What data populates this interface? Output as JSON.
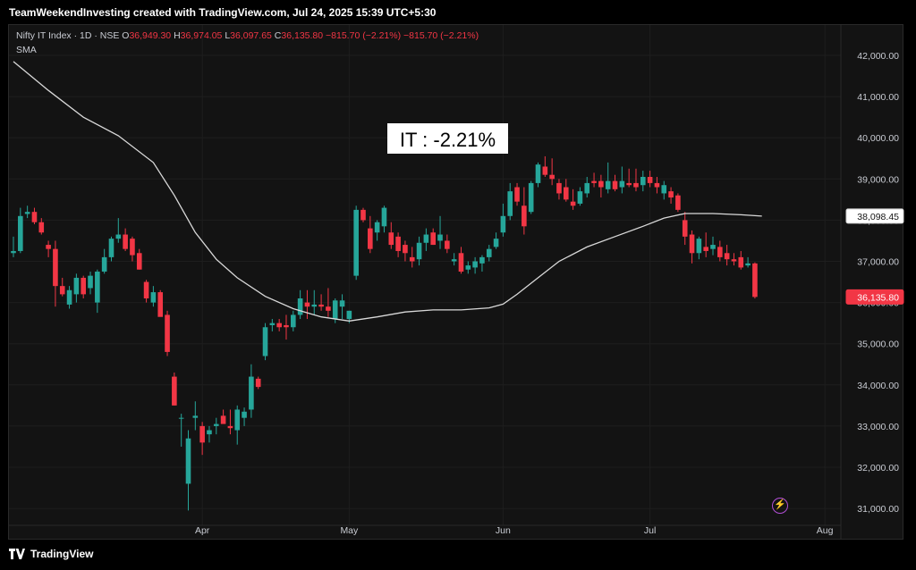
{
  "header": {
    "attribution": "TeamWeekendInvesting created with TradingView.com, Jul 24, 2025 15:39 UTC+5:30"
  },
  "legend": {
    "instrument": "Nifty IT Index · 1D · NSE",
    "o_label": "O",
    "o_value": "36,949.30",
    "h_label": "H",
    "h_value": "36,974.05",
    "l_label": "L",
    "l_value": "36,097.65",
    "c_label": "C",
    "c_value": "36,135.80",
    "change": "−815.70 (−2.21%)",
    "change2": "−815.70 (−2.21%)",
    "sma_label": "SMA"
  },
  "annotation": {
    "text": "IT : -2.21%"
  },
  "footer": {
    "brand": "TradingView"
  },
  "colors": {
    "up": "#26a69a",
    "down": "#f23645",
    "sma": "#d9d9d9",
    "background": "#131313",
    "grid": "#1e1e1e"
  },
  "icons": {
    "footer_logo": "tradingview-logo-icon",
    "alert": "lightning-icon"
  },
  "chart_data": {
    "type": "candlestick",
    "y_axis": {
      "ticks": [
        31000,
        32000,
        33000,
        34000,
        35000,
        36000,
        37000,
        38000,
        39000,
        40000,
        41000,
        42000
      ],
      "tick_labels": [
        "31,000.00",
        "32,000.00",
        "33,000.00",
        "34,000.00",
        "35,000.00",
        "36,000.00",
        "37,000.00",
        "38,000.00",
        "39,000.00",
        "40,000.00",
        "41,000.00",
        "42,000.00"
      ],
      "range": [
        30900,
        42400
      ]
    },
    "x_axis": {
      "labels": [
        "Apr",
        "May",
        "Jun",
        "Jul",
        "Aug"
      ],
      "label_bar_index": [
        27,
        48,
        70,
        91,
        116
      ]
    },
    "price_labels": [
      {
        "text": "38,098.45",
        "value": 38098.45,
        "style": "sma"
      },
      {
        "text": "36,135.80",
        "value": 36135.8,
        "style": "last"
      }
    ],
    "candles": [
      {
        "o": 37200,
        "h": 37600,
        "l": 37100,
        "c": 37250
      },
      {
        "o": 37250,
        "h": 38300,
        "l": 37200,
        "c": 38100
      },
      {
        "o": 38150,
        "h": 38350,
        "l": 38050,
        "c": 38200
      },
      {
        "o": 38200,
        "h": 38300,
        "l": 37900,
        "c": 37950
      },
      {
        "o": 37950,
        "h": 38050,
        "l": 37650,
        "c": 37700
      },
      {
        "o": 37400,
        "h": 37500,
        "l": 37100,
        "c": 37300
      },
      {
        "o": 37300,
        "h": 37500,
        "l": 35900,
        "c": 36400
      },
      {
        "o": 36400,
        "h": 36600,
        "l": 36150,
        "c": 36200
      },
      {
        "o": 35950,
        "h": 36400,
        "l": 35850,
        "c": 36300
      },
      {
        "o": 36200,
        "h": 36700,
        "l": 36000,
        "c": 36600
      },
      {
        "o": 36600,
        "h": 36650,
        "l": 36100,
        "c": 36200
      },
      {
        "o": 36350,
        "h": 36750,
        "l": 36200,
        "c": 36650
      },
      {
        "o": 36000,
        "h": 36800,
        "l": 35750,
        "c": 36750
      },
      {
        "o": 36750,
        "h": 37300,
        "l": 36700,
        "c": 37100
      },
      {
        "o": 37100,
        "h": 37600,
        "l": 37000,
        "c": 37550
      },
      {
        "o": 37550,
        "h": 38050,
        "l": 37450,
        "c": 37650
      },
      {
        "o": 37650,
        "h": 37800,
        "l": 37250,
        "c": 37300
      },
      {
        "o": 37550,
        "h": 37600,
        "l": 37000,
        "c": 37150
      },
      {
        "o": 37200,
        "h": 37300,
        "l": 36800,
        "c": 36800
      },
      {
        "o": 36500,
        "h": 36550,
        "l": 36000,
        "c": 36100
      },
      {
        "o": 36000,
        "h": 36400,
        "l": 35900,
        "c": 36250
      },
      {
        "o": 36250,
        "h": 36300,
        "l": 35700,
        "c": 35650
      },
      {
        "o": 35700,
        "h": 35800,
        "l": 34700,
        "c": 34800
      },
      {
        "o": 34200,
        "h": 34300,
        "l": 33500,
        "c": 33500
      },
      {
        "o": 33200,
        "h": 33300,
        "l": 32500,
        "c": 33200
      },
      {
        "o": 31600,
        "h": 32900,
        "l": 30950,
        "c": 32700
      },
      {
        "o": 33200,
        "h": 33600,
        "l": 32900,
        "c": 33250
      },
      {
        "o": 33000,
        "h": 33100,
        "l": 32300,
        "c": 32600
      },
      {
        "o": 32800,
        "h": 33000,
        "l": 32600,
        "c": 32900
      },
      {
        "o": 33000,
        "h": 33200,
        "l": 32800,
        "c": 33050
      },
      {
        "o": 33250,
        "h": 33400,
        "l": 33100,
        "c": 33050
      },
      {
        "o": 33000,
        "h": 33400,
        "l": 32800,
        "c": 32950
      },
      {
        "o": 32900,
        "h": 33500,
        "l": 32550,
        "c": 33400
      },
      {
        "o": 33200,
        "h": 33450,
        "l": 33000,
        "c": 33350
      },
      {
        "o": 33400,
        "h": 34500,
        "l": 33200,
        "c": 34200
      },
      {
        "o": 34150,
        "h": 34200,
        "l": 33900,
        "c": 33950
      },
      {
        "o": 34700,
        "h": 35500,
        "l": 34600,
        "c": 35400
      },
      {
        "o": 35450,
        "h": 35600,
        "l": 35300,
        "c": 35500
      },
      {
        "o": 35500,
        "h": 35600,
        "l": 35300,
        "c": 35400
      },
      {
        "o": 35450,
        "h": 35700,
        "l": 35100,
        "c": 35400
      },
      {
        "o": 35400,
        "h": 35800,
        "l": 35300,
        "c": 35700
      },
      {
        "o": 35700,
        "h": 36300,
        "l": 35600,
        "c": 36100
      },
      {
        "o": 36000,
        "h": 36300,
        "l": 35600,
        "c": 35900
      },
      {
        "o": 35900,
        "h": 36300,
        "l": 35700,
        "c": 35950
      },
      {
        "o": 35950,
        "h": 36200,
        "l": 35800,
        "c": 35900
      },
      {
        "o": 35900,
        "h": 36350,
        "l": 35650,
        "c": 35800
      },
      {
        "o": 35600,
        "h": 36100,
        "l": 35500,
        "c": 36050
      },
      {
        "o": 35900,
        "h": 36200,
        "l": 35600,
        "c": 36050
      },
      {
        "o": 35600,
        "h": 35800,
        "l": 35500,
        "c": 35800
      },
      {
        "o": 36650,
        "h": 38350,
        "l": 36550,
        "c": 38250
      },
      {
        "o": 38250,
        "h": 38300,
        "l": 37950,
        "c": 38000
      },
      {
        "o": 37800,
        "h": 38100,
        "l": 37200,
        "c": 37300
      },
      {
        "o": 37700,
        "h": 38000,
        "l": 37500,
        "c": 37950
      },
      {
        "o": 37850,
        "h": 38350,
        "l": 37700,
        "c": 38300
      },
      {
        "o": 37700,
        "h": 37950,
        "l": 37300,
        "c": 37400
      },
      {
        "o": 37600,
        "h": 37700,
        "l": 37100,
        "c": 37250
      },
      {
        "o": 37400,
        "h": 37500,
        "l": 37000,
        "c": 37200
      },
      {
        "o": 37100,
        "h": 37350,
        "l": 36850,
        "c": 37000
      },
      {
        "o": 37050,
        "h": 37600,
        "l": 36900,
        "c": 37450
      },
      {
        "o": 37450,
        "h": 37800,
        "l": 37250,
        "c": 37650
      },
      {
        "o": 37700,
        "h": 37800,
        "l": 37400,
        "c": 37400
      },
      {
        "o": 37500,
        "h": 38100,
        "l": 37300,
        "c": 37650
      },
      {
        "o": 37500,
        "h": 37650,
        "l": 37200,
        "c": 37300
      },
      {
        "o": 37000,
        "h": 37200,
        "l": 36900,
        "c": 37050
      },
      {
        "o": 37200,
        "h": 37350,
        "l": 36700,
        "c": 36750
      },
      {
        "o": 36800,
        "h": 37000,
        "l": 36700,
        "c": 36900
      },
      {
        "o": 36850,
        "h": 37100,
        "l": 36700,
        "c": 37000
      },
      {
        "o": 36950,
        "h": 37150,
        "l": 36750,
        "c": 37100
      },
      {
        "o": 37100,
        "h": 37400,
        "l": 37000,
        "c": 37300
      },
      {
        "o": 37350,
        "h": 37700,
        "l": 37300,
        "c": 37550
      },
      {
        "o": 37700,
        "h": 38400,
        "l": 37600,
        "c": 38100
      },
      {
        "o": 38100,
        "h": 38900,
        "l": 38000,
        "c": 38700
      },
      {
        "o": 38800,
        "h": 38900,
        "l": 38350,
        "c": 38450
      },
      {
        "o": 38350,
        "h": 38800,
        "l": 37650,
        "c": 37850
      },
      {
        "o": 38200,
        "h": 38950,
        "l": 38150,
        "c": 38900
      },
      {
        "o": 38900,
        "h": 39400,
        "l": 38800,
        "c": 39350
      },
      {
        "o": 39300,
        "h": 39550,
        "l": 39050,
        "c": 39100
      },
      {
        "o": 39100,
        "h": 39500,
        "l": 38850,
        "c": 39000
      },
      {
        "o": 38900,
        "h": 39000,
        "l": 38500,
        "c": 38650
      },
      {
        "o": 38800,
        "h": 39000,
        "l": 38450,
        "c": 38500
      },
      {
        "o": 38450,
        "h": 38750,
        "l": 38250,
        "c": 38350
      },
      {
        "o": 38400,
        "h": 38800,
        "l": 38350,
        "c": 38700
      },
      {
        "o": 38650,
        "h": 39050,
        "l": 38550,
        "c": 38900
      },
      {
        "o": 38950,
        "h": 39150,
        "l": 38800,
        "c": 38900
      },
      {
        "o": 38950,
        "h": 39100,
        "l": 38550,
        "c": 38800
      },
      {
        "o": 38750,
        "h": 39400,
        "l": 38650,
        "c": 38950
      },
      {
        "o": 38950,
        "h": 39100,
        "l": 38700,
        "c": 38750
      },
      {
        "o": 38800,
        "h": 39300,
        "l": 38650,
        "c": 38950
      },
      {
        "o": 38900,
        "h": 39250,
        "l": 38800,
        "c": 38850
      },
      {
        "o": 38900,
        "h": 39250,
        "l": 38700,
        "c": 38800
      },
      {
        "o": 38850,
        "h": 39200,
        "l": 38700,
        "c": 39050
      },
      {
        "o": 39050,
        "h": 39200,
        "l": 38800,
        "c": 38900
      },
      {
        "o": 38900,
        "h": 39050,
        "l": 38650,
        "c": 38800
      },
      {
        "o": 38650,
        "h": 38950,
        "l": 38500,
        "c": 38850
      },
      {
        "o": 38700,
        "h": 38800,
        "l": 38400,
        "c": 38550
      },
      {
        "o": 38600,
        "h": 38650,
        "l": 38200,
        "c": 38250
      },
      {
        "o": 38000,
        "h": 38200,
        "l": 37400,
        "c": 37600
      },
      {
        "o": 37650,
        "h": 37750,
        "l": 36950,
        "c": 37200
      },
      {
        "o": 37200,
        "h": 37600,
        "l": 37050,
        "c": 37550
      },
      {
        "o": 37350,
        "h": 37700,
        "l": 37100,
        "c": 37250
      },
      {
        "o": 37300,
        "h": 37600,
        "l": 37150,
        "c": 37400
      },
      {
        "o": 37350,
        "h": 37500,
        "l": 37000,
        "c": 37100
      },
      {
        "o": 37200,
        "h": 37400,
        "l": 36900,
        "c": 37050
      },
      {
        "o": 37050,
        "h": 37200,
        "l": 36900,
        "c": 37000
      },
      {
        "o": 37100,
        "h": 37250,
        "l": 36800,
        "c": 36850
      },
      {
        "o": 36900,
        "h": 37100,
        "l": 36850,
        "c": 36950
      },
      {
        "o": 36949.3,
        "h": 36974.05,
        "l": 36097.65,
        "c": 36135.8
      }
    ],
    "sma": [
      {
        "i": 0,
        "v": 41850
      },
      {
        "i": 5,
        "v": 41150
      },
      {
        "i": 10,
        "v": 40500
      },
      {
        "i": 15,
        "v": 40050
      },
      {
        "i": 20,
        "v": 39400
      },
      {
        "i": 23,
        "v": 38600
      },
      {
        "i": 26,
        "v": 37700
      },
      {
        "i": 29,
        "v": 37050
      },
      {
        "i": 32,
        "v": 36600
      },
      {
        "i": 36,
        "v": 36150
      },
      {
        "i": 40,
        "v": 35850
      },
      {
        "i": 44,
        "v": 35650
      },
      {
        "i": 48,
        "v": 35550
      },
      {
        "i": 52,
        "v": 35650
      },
      {
        "i": 56,
        "v": 35770
      },
      {
        "i": 60,
        "v": 35820
      },
      {
        "i": 64,
        "v": 35820
      },
      {
        "i": 68,
        "v": 35870
      },
      {
        "i": 70,
        "v": 35960
      },
      {
        "i": 72,
        "v": 36200
      },
      {
        "i": 75,
        "v": 36600
      },
      {
        "i": 78,
        "v": 37000
      },
      {
        "i": 82,
        "v": 37350
      },
      {
        "i": 86,
        "v": 37600
      },
      {
        "i": 90,
        "v": 37850
      },
      {
        "i": 93,
        "v": 38050
      },
      {
        "i": 96,
        "v": 38160
      },
      {
        "i": 100,
        "v": 38160
      },
      {
        "i": 104,
        "v": 38130
      },
      {
        "i": 107,
        "v": 38098.45
      }
    ]
  }
}
